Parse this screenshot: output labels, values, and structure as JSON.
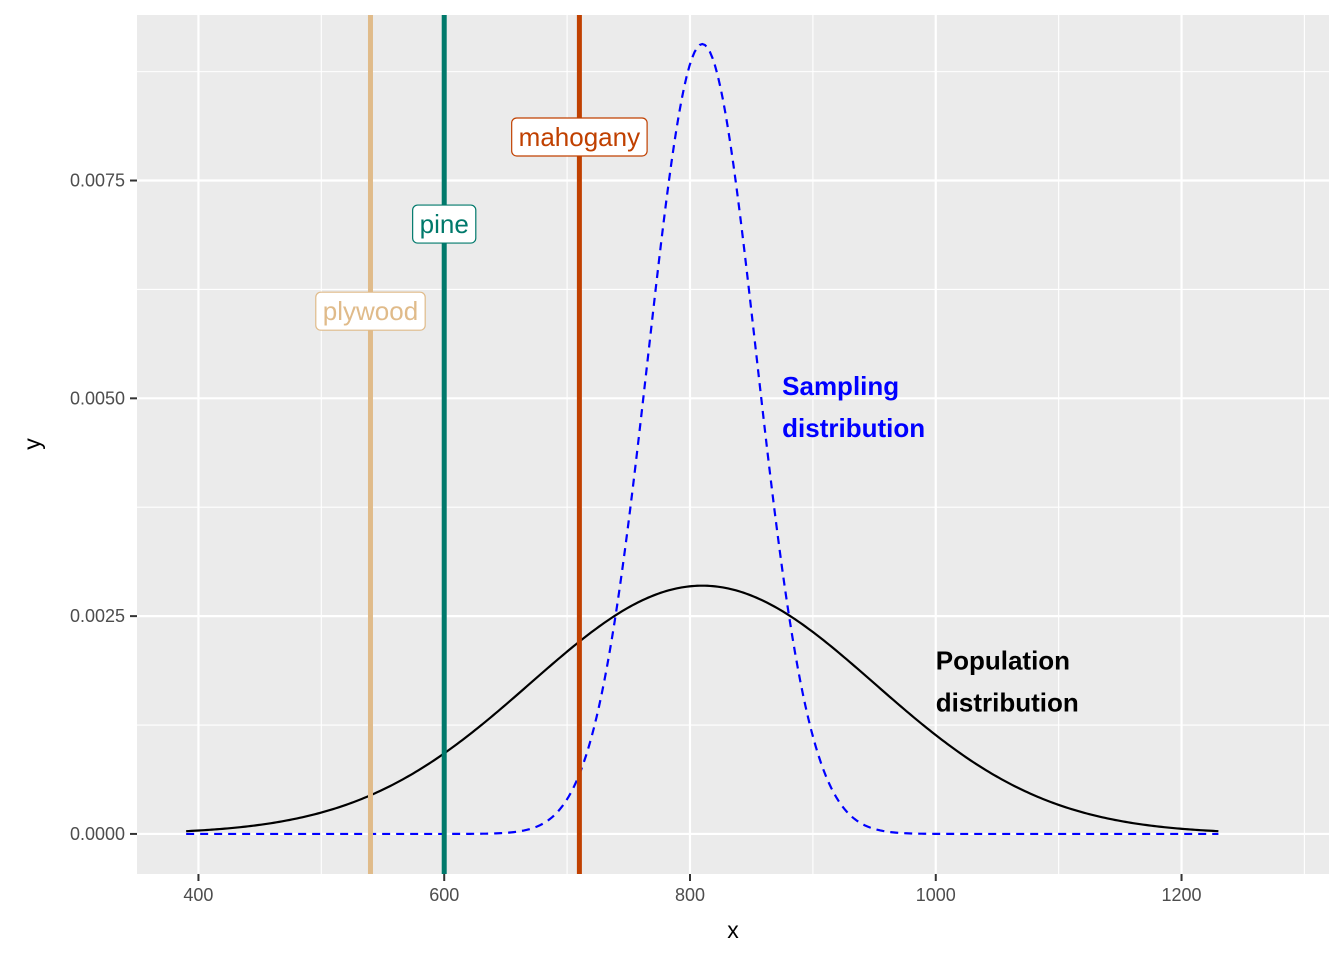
{
  "chart_data": {
    "type": "line",
    "xlabel": "x",
    "ylabel": "y",
    "xlim": [
      350,
      1320
    ],
    "ylim": [
      -0.00046,
      0.0094
    ],
    "x_ticks": [
      400,
      600,
      800,
      1000,
      1200
    ],
    "x_tick_labels": [
      "400",
      "600",
      "800",
      "1000",
      "1200"
    ],
    "y_ticks": [
      0.0,
      0.0025,
      0.005,
      0.0075
    ],
    "y_tick_labels": [
      "0.0000",
      "0.0025",
      "0.0050",
      "0.0075"
    ],
    "grid": true,
    "colors": {
      "panel": "#ebebeb",
      "grid": "#ffffff",
      "population": "#000000",
      "sampling": "#0000ff"
    },
    "series": [
      {
        "key": "population",
        "label_lines": [
          "Population",
          "distribution"
        ],
        "label_at": {
          "x": 1000,
          "y": 0.00175
        },
        "style": "solid",
        "mean": 810,
        "sd": 140,
        "x_range": [
          390,
          1230
        ]
      },
      {
        "key": "sampling",
        "label_lines": [
          "Sampling",
          "distribution"
        ],
        "label_at": {
          "x": 875,
          "y": 0.0049
        },
        "style": "dashed",
        "mean": 810,
        "sd": 44,
        "x_range": [
          390,
          1230
        ]
      }
    ],
    "vlines": [
      {
        "label": "plywood",
        "x": 540,
        "label_y": 0.006,
        "color": "#e0bb8a"
      },
      {
        "label": "pine",
        "x": 600,
        "label_y": 0.007,
        "color": "#00796b"
      },
      {
        "label": "mahogany",
        "x": 710,
        "label_y": 0.008,
        "color": "#c04000"
      }
    ]
  }
}
